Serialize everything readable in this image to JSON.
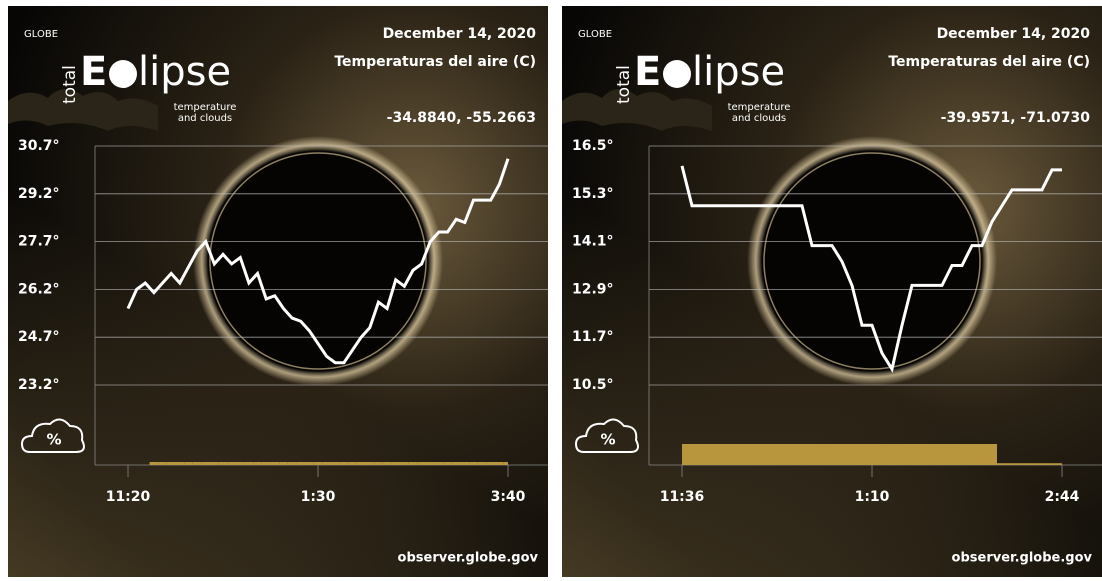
{
  "chart_data": [
    {
      "type": "line",
      "brand": "GLOBE",
      "logo_small": "total",
      "logo_e": "E",
      "logo_rest": "lipse",
      "tagline1": "temperature",
      "tagline2": "and clouds",
      "date": "December 14, 2020",
      "title": "Temperaturas del aire (C)",
      "coordinates": "-34.8840, -55.2663",
      "cloud_icon": "%",
      "footer": "observer.globe.gov",
      "categories": [
        "11:20",
        null,
        null,
        null,
        null,
        null,
        null,
        null,
        null,
        null,
        null,
        null,
        null,
        null,
        null,
        null,
        null,
        null,
        null,
        null,
        null,
        null,
        "1:30",
        null,
        null,
        null,
        null,
        null,
        null,
        null,
        null,
        null,
        null,
        null,
        null,
        null,
        null,
        null,
        null,
        null,
        null,
        null,
        null,
        null,
        "3:40"
      ],
      "values": [
        25.6,
        26.2,
        26.4,
        26.1,
        26.4,
        26.7,
        26.4,
        26.9,
        27.4,
        27.7,
        27.0,
        27.3,
        27.0,
        27.2,
        26.4,
        26.7,
        25.9,
        26.0,
        25.6,
        25.3,
        25.2,
        24.9,
        24.5,
        24.1,
        23.9,
        23.9,
        24.3,
        24.7,
        25.0,
        25.8,
        25.6,
        26.5,
        26.3,
        26.8,
        27.0,
        27.7,
        28.0,
        28.0,
        28.4,
        28.3,
        29.0,
        29.0,
        29.0,
        29.5,
        30.3
      ],
      "color": "#ffffff",
      "cloud_values": [
        0,
        0,
        0,
        5,
        5,
        5,
        5,
        5,
        5,
        5,
        5,
        5,
        5,
        5,
        5,
        5,
        5,
        5,
        5,
        5,
        5,
        5,
        5,
        5,
        5,
        5,
        5,
        5,
        5,
        5,
        5,
        5,
        5,
        5,
        5,
        5,
        5,
        5,
        5,
        5,
        5,
        5,
        5,
        5,
        5
      ],
      "cloud_color": "#b8963e",
      "ylim": [
        23.2,
        30.7
      ],
      "yticks": [
        {
          "value": 30.7,
          "label": "30.7°"
        },
        {
          "value": 29.2,
          "label": "29.2°"
        },
        {
          "value": 27.7,
          "label": "27.7°"
        },
        {
          "value": 26.2,
          "label": "26.2°"
        },
        {
          "value": 24.7,
          "label": "24.7°"
        },
        {
          "value": 23.2,
          "label": "23.2°"
        }
      ],
      "grid": true
    },
    {
      "type": "line",
      "brand": "GLOBE",
      "logo_small": "total",
      "logo_e": "E",
      "logo_rest": "lipse",
      "tagline1": "temperature",
      "tagline2": "and clouds",
      "date": "December 14, 2020",
      "title": "Temperaturas del aire (C)",
      "coordinates": "-39.9571, -71.0730",
      "cloud_icon": "%",
      "footer": "observer.globe.gov",
      "categories": [
        "11:36",
        null,
        null,
        null,
        null,
        null,
        null,
        null,
        null,
        null,
        null,
        null,
        null,
        null,
        null,
        null,
        null,
        null,
        null,
        "1:10",
        null,
        null,
        null,
        null,
        null,
        null,
        null,
        null,
        null,
        null,
        null,
        null,
        null,
        null,
        null,
        null,
        null,
        null,
        "2:44"
      ],
      "values": [
        16.0,
        15.0,
        15.0,
        15.0,
        15.0,
        15.0,
        15.0,
        15.0,
        15.0,
        15.0,
        15.0,
        15.0,
        15.0,
        14.0,
        14.0,
        14.0,
        13.6,
        13.0,
        12.0,
        12.0,
        11.3,
        10.9,
        12.0,
        13.0,
        13.0,
        13.0,
        13.0,
        13.5,
        13.5,
        14.0,
        14.0,
        14.6,
        15.0,
        15.4,
        15.4,
        15.4,
        15.4,
        15.9,
        15.9
      ],
      "color": "#ffffff",
      "cloud_values": [
        35,
        35,
        35,
        35,
        35,
        35,
        35,
        35,
        35,
        35,
        35,
        35,
        35,
        35,
        35,
        35,
        35,
        35,
        35,
        35,
        35,
        35,
        35,
        35,
        35,
        35,
        35,
        35,
        35,
        35,
        35,
        35,
        3,
        3,
        3,
        3,
        3,
        3,
        3
      ],
      "cloud_color": "#b8963e",
      "ylim": [
        10.5,
        16.5
      ],
      "yticks": [
        {
          "value": 16.5,
          "label": "16.5°"
        },
        {
          "value": 15.3,
          "label": "15.3°"
        },
        {
          "value": 14.1,
          "label": "14.1°"
        },
        {
          "value": 12.9,
          "label": "12.9°"
        },
        {
          "value": 11.7,
          "label": "11.7°"
        },
        {
          "value": 10.5,
          "label": "10.5°"
        }
      ],
      "grid": true
    }
  ]
}
